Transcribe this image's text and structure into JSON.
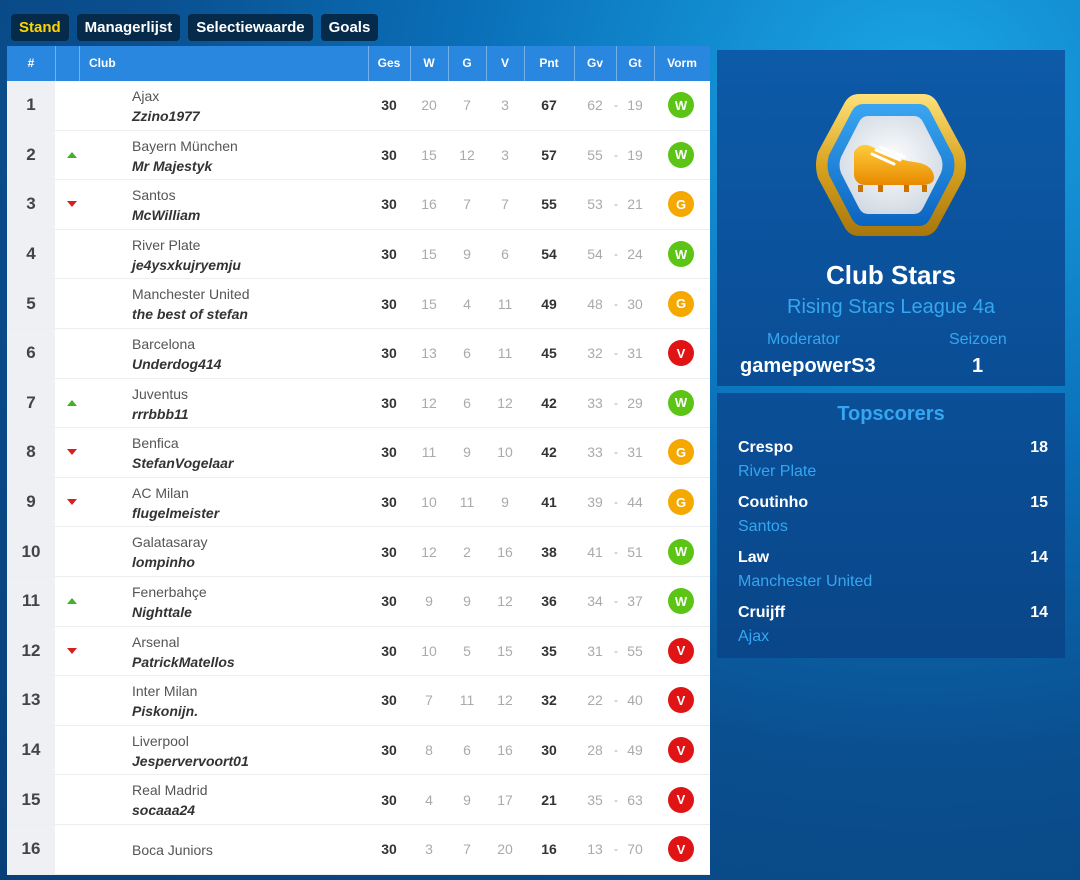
{
  "tabs": [
    {
      "label": "Stand",
      "active": true
    },
    {
      "label": "Managerlijst",
      "active": false
    },
    {
      "label": "Selectiewaarde",
      "active": false
    },
    {
      "label": "Goals",
      "active": false
    }
  ],
  "table": {
    "headers": {
      "pos": "#",
      "club": "Club",
      "ges": "Ges",
      "w": "W",
      "g": "G",
      "v": "V",
      "pnt": "Pnt",
      "gv": "Gv",
      "gt": "Gt",
      "vorm": "Vorm"
    },
    "goal_separator": "-",
    "rows": [
      {
        "pos": "1",
        "trend": "",
        "club": "Ajax",
        "manager": "Zzino1977",
        "ges": "30",
        "w": "20",
        "g": "7",
        "v": "3",
        "pnt": "67",
        "gv": "62",
        "gt": "19",
        "form": "W"
      },
      {
        "pos": "2",
        "trend": "up",
        "club": "Bayern München",
        "manager": "Mr Majestyk",
        "ges": "30",
        "w": "15",
        "g": "12",
        "v": "3",
        "pnt": "57",
        "gv": "55",
        "gt": "19",
        "form": "W"
      },
      {
        "pos": "3",
        "trend": "down",
        "club": "Santos",
        "manager": "McWilliam",
        "ges": "30",
        "w": "16",
        "g": "7",
        "v": "7",
        "pnt": "55",
        "gv": "53",
        "gt": "21",
        "form": "G"
      },
      {
        "pos": "4",
        "trend": "",
        "club": "River Plate",
        "manager": "je4ysxkujryemju",
        "ges": "30",
        "w": "15",
        "g": "9",
        "v": "6",
        "pnt": "54",
        "gv": "54",
        "gt": "24",
        "form": "W"
      },
      {
        "pos": "5",
        "trend": "",
        "club": "Manchester United",
        "manager": "the best of stefan",
        "ges": "30",
        "w": "15",
        "g": "4",
        "v": "11",
        "pnt": "49",
        "gv": "48",
        "gt": "30",
        "form": "G"
      },
      {
        "pos": "6",
        "trend": "",
        "club": "Barcelona",
        "manager": "Underdog414",
        "ges": "30",
        "w": "13",
        "g": "6",
        "v": "11",
        "pnt": "45",
        "gv": "32",
        "gt": "31",
        "form": "V"
      },
      {
        "pos": "7",
        "trend": "up",
        "club": "Juventus",
        "manager": "rrrbbb11",
        "ges": "30",
        "w": "12",
        "g": "6",
        "v": "12",
        "pnt": "42",
        "gv": "33",
        "gt": "29",
        "form": "W"
      },
      {
        "pos": "8",
        "trend": "down",
        "club": "Benfica",
        "manager": "StefanVogelaar",
        "ges": "30",
        "w": "11",
        "g": "9",
        "v": "10",
        "pnt": "42",
        "gv": "33",
        "gt": "31",
        "form": "G"
      },
      {
        "pos": "9",
        "trend": "down",
        "club": "AC Milan",
        "manager": "flugelmeister",
        "ges": "30",
        "w": "10",
        "g": "11",
        "v": "9",
        "pnt": "41",
        "gv": "39",
        "gt": "44",
        "form": "G"
      },
      {
        "pos": "10",
        "trend": "",
        "club": "Galatasaray",
        "manager": "lompinho",
        "ges": "30",
        "w": "12",
        "g": "2",
        "v": "16",
        "pnt": "38",
        "gv": "41",
        "gt": "51",
        "form": "W"
      },
      {
        "pos": "11",
        "trend": "up",
        "club": "Fenerbahçe",
        "manager": "Nighttale",
        "ges": "30",
        "w": "9",
        "g": "9",
        "v": "12",
        "pnt": "36",
        "gv": "34",
        "gt": "37",
        "form": "W"
      },
      {
        "pos": "12",
        "trend": "down",
        "club": "Arsenal",
        "manager": "PatrickMatellos",
        "ges": "30",
        "w": "10",
        "g": "5",
        "v": "15",
        "pnt": "35",
        "gv": "31",
        "gt": "55",
        "form": "V"
      },
      {
        "pos": "13",
        "trend": "",
        "club": "Inter Milan",
        "manager": "Piskonijn.",
        "ges": "30",
        "w": "7",
        "g": "11",
        "v": "12",
        "pnt": "32",
        "gv": "22",
        "gt": "40",
        "form": "V"
      },
      {
        "pos": "14",
        "trend": "",
        "club": "Liverpool",
        "manager": "Jespervervoort01",
        "ges": "30",
        "w": "8",
        "g": "6",
        "v": "16",
        "pnt": "30",
        "gv": "28",
        "gt": "49",
        "form": "V"
      },
      {
        "pos": "15",
        "trend": "",
        "club": "Real Madrid",
        "manager": "socaaa24",
        "ges": "30",
        "w": "4",
        "g": "9",
        "v": "17",
        "pnt": "21",
        "gv": "35",
        "gt": "63",
        "form": "V"
      },
      {
        "pos": "16",
        "trend": "",
        "club": "Boca Juniors",
        "manager": "",
        "ges": "30",
        "w": "3",
        "g": "7",
        "v": "20",
        "pnt": "16",
        "gv": "13",
        "gt": "70",
        "form": "V"
      }
    ]
  },
  "form_colors": {
    "W": "#5cc414",
    "G": "#f5a800",
    "V": "#e01414"
  },
  "league_card": {
    "badge_icon": "football-boot-icon",
    "title": "Club Stars",
    "league": "Rising Stars League 4a",
    "moderator_label": "Moderator",
    "moderator": "gamepowerS3",
    "season_label": "Seizoen",
    "season": "1"
  },
  "topscorers": {
    "title": "Topscorers",
    "items": [
      {
        "name": "Crespo",
        "club": "River Plate",
        "goals": "18"
      },
      {
        "name": "Coutinho",
        "club": "Santos",
        "goals": "15"
      },
      {
        "name": "Law",
        "club": "Manchester United",
        "goals": "14"
      },
      {
        "name": "Cruijff",
        "club": "Ajax",
        "goals": "14"
      }
    ]
  }
}
